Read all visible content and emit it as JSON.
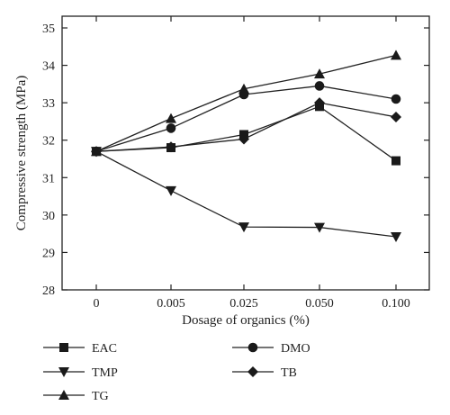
{
  "chart_data": {
    "type": "line",
    "xlabel": "Dosage of organics (%)",
    "ylabel": "Compressive strength (MPa)",
    "categories": [
      "0",
      "0.005",
      "0.025",
      "0.050",
      "0.100"
    ],
    "ylim": [
      28,
      35.5
    ],
    "yticks": [
      28,
      29,
      30,
      31,
      32,
      33,
      34,
      35
    ],
    "ytick_labels": [
      "28",
      "29",
      "30",
      "31",
      "32",
      "33",
      "34",
      "35"
    ],
    "grid": false,
    "legend_placement": "bottom",
    "series": [
      {
        "name": "EAC",
        "marker": "square",
        "values": [
          31.7,
          31.8,
          32.15,
          32.9,
          31.45
        ]
      },
      {
        "name": "DMO",
        "marker": "circle",
        "values": [
          31.7,
          32.32,
          33.22,
          33.45,
          33.1
        ]
      },
      {
        "name": "TMP",
        "marker": "triangle-down",
        "values": [
          31.7,
          30.65,
          29.68,
          29.67,
          29.42
        ]
      },
      {
        "name": "TB",
        "marker": "diamond",
        "values": [
          31.7,
          31.82,
          32.03,
          33.0,
          32.62
        ]
      },
      {
        "name": "TG",
        "marker": "triangle-up",
        "values": [
          31.7,
          32.58,
          33.37,
          33.77,
          34.27
        ]
      }
    ],
    "colors": {
      "ink": "#1a1a1a"
    }
  }
}
